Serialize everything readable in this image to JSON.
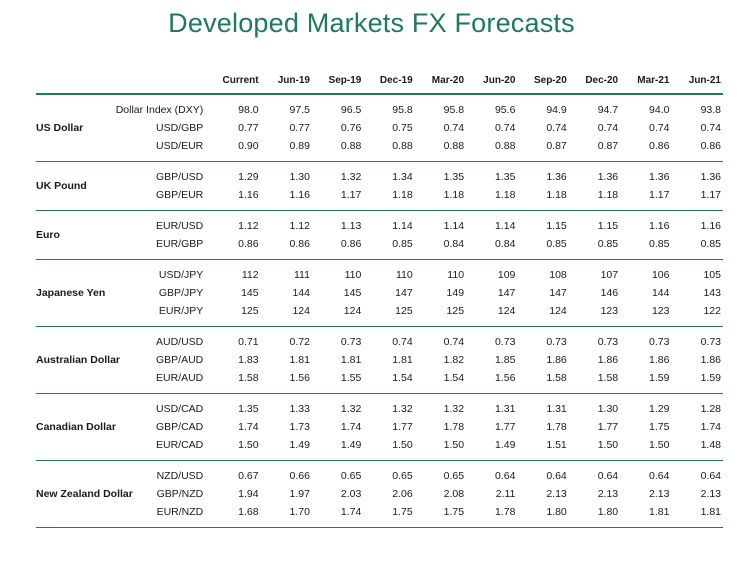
{
  "title": "Developed Markets FX Forecasts",
  "columns": [
    "Current",
    "Jun-19",
    "Sep-19",
    "Dec-19",
    "Mar-20",
    "Jun-20",
    "Sep-20",
    "Dec-20",
    "Mar-21",
    "Jun-21"
  ],
  "groups": [
    {
      "name": "US Dollar",
      "rows": [
        {
          "pair": "Dollar Index (DXY)",
          "values": [
            "98.0",
            "97.5",
            "96.5",
            "95.8",
            "95.8",
            "95.6",
            "94.9",
            "94.7",
            "94.0",
            "93.8"
          ]
        },
        {
          "pair": "USD/GBP",
          "values": [
            "0.77",
            "0.77",
            "0.76",
            "0.75",
            "0.74",
            "0.74",
            "0.74",
            "0.74",
            "0.74",
            "0.74"
          ]
        },
        {
          "pair": "USD/EUR",
          "values": [
            "0.90",
            "0.89",
            "0.88",
            "0.88",
            "0.88",
            "0.88",
            "0.87",
            "0.87",
            "0.86",
            "0.86"
          ]
        }
      ]
    },
    {
      "name": "UK Pound",
      "rows": [
        {
          "pair": "GBP/USD",
          "values": [
            "1.29",
            "1.30",
            "1.32",
            "1.34",
            "1.35",
            "1.35",
            "1.36",
            "1.36",
            "1.36",
            "1.36"
          ]
        },
        {
          "pair": "GBP/EUR",
          "values": [
            "1.16",
            "1.16",
            "1.17",
            "1.18",
            "1.18",
            "1.18",
            "1.18",
            "1.18",
            "1.17",
            "1.17"
          ]
        }
      ]
    },
    {
      "name": "Euro",
      "rows": [
        {
          "pair": "EUR/USD",
          "values": [
            "1.12",
            "1.12",
            "1.13",
            "1.14",
            "1.14",
            "1.14",
            "1.15",
            "1.15",
            "1.16",
            "1.16"
          ]
        },
        {
          "pair": "EUR/GBP",
          "values": [
            "0.86",
            "0.86",
            "0.86",
            "0.85",
            "0.84",
            "0.84",
            "0.85",
            "0.85",
            "0.85",
            "0.85"
          ]
        }
      ]
    },
    {
      "name": "Japanese Yen",
      "rows": [
        {
          "pair": "USD/JPY",
          "values": [
            "112",
            "111",
            "110",
            "110",
            "110",
            "109",
            "108",
            "107",
            "106",
            "105"
          ]
        },
        {
          "pair": "GBP/JPY",
          "values": [
            "145",
            "144",
            "145",
            "147",
            "149",
            "147",
            "147",
            "146",
            "144",
            "143"
          ]
        },
        {
          "pair": "EUR/JPY",
          "values": [
            "125",
            "124",
            "124",
            "125",
            "125",
            "124",
            "124",
            "123",
            "123",
            "122"
          ]
        }
      ]
    },
    {
      "name": "Australian Dollar",
      "rows": [
        {
          "pair": "AUD/USD",
          "values": [
            "0.71",
            "0.72",
            "0.73",
            "0.74",
            "0.74",
            "0.73",
            "0.73",
            "0.73",
            "0.73",
            "0.73"
          ]
        },
        {
          "pair": "GBP/AUD",
          "values": [
            "1.83",
            "1.81",
            "1.81",
            "1.81",
            "1.82",
            "1.85",
            "1.86",
            "1.86",
            "1.86",
            "1.86"
          ]
        },
        {
          "pair": "EUR/AUD",
          "values": [
            "1.58",
            "1.56",
            "1.55",
            "1.54",
            "1.54",
            "1.56",
            "1.58",
            "1.58",
            "1.59",
            "1.59"
          ]
        }
      ]
    },
    {
      "name": "Canadian Dollar",
      "rows": [
        {
          "pair": "USD/CAD",
          "values": [
            "1.35",
            "1.33",
            "1.32",
            "1.32",
            "1.32",
            "1.31",
            "1.31",
            "1.30",
            "1.29",
            "1.28"
          ]
        },
        {
          "pair": "GBP/CAD",
          "values": [
            "1.74",
            "1.73",
            "1.74",
            "1.77",
            "1.78",
            "1.77",
            "1.78",
            "1.77",
            "1.75",
            "1.74"
          ]
        },
        {
          "pair": "EUR/CAD",
          "values": [
            "1.50",
            "1.49",
            "1.49",
            "1.50",
            "1.50",
            "1.49",
            "1.51",
            "1.50",
            "1.50",
            "1.48"
          ]
        }
      ]
    },
    {
      "name": "New Zealand Dollar",
      "rows": [
        {
          "pair": "NZD/USD",
          "values": [
            "0.67",
            "0.66",
            "0.65",
            "0.65",
            "0.65",
            "0.64",
            "0.64",
            "0.64",
            "0.64",
            "0.64"
          ]
        },
        {
          "pair": "GBP/NZD",
          "values": [
            "1.94",
            "1.97",
            "2.03",
            "2.06",
            "2.08",
            "2.11",
            "2.13",
            "2.13",
            "2.13",
            "2.13"
          ]
        },
        {
          "pair": "EUR/NZD",
          "values": [
            "1.68",
            "1.70",
            "1.74",
            "1.75",
            "1.75",
            "1.78",
            "1.80",
            "1.80",
            "1.81",
            "1.81"
          ]
        }
      ]
    }
  ]
}
